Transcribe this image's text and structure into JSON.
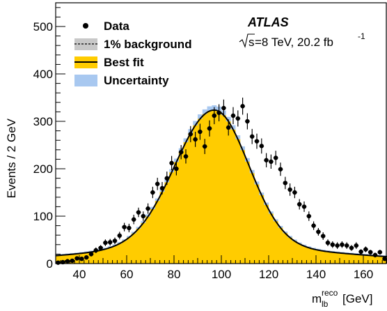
{
  "chart_data": {
    "type": "bar",
    "xlabel": "[GeV]",
    "xlabel_var": "m",
    "xlabel_sub": "lb",
    "xlabel_sup": "reco",
    "ylabel": "Events / 2 GeV",
    "xlim": [
      30,
      170
    ],
    "ylim": [
      0,
      550
    ],
    "bin_width": 2,
    "x_ticks": [
      40,
      60,
      80,
      100,
      120,
      140,
      160
    ],
    "y_ticks": [
      0,
      100,
      200,
      300,
      400,
      500
    ],
    "grid": false,
    "legend_position": "top-left",
    "experiment_label": "ATLAS",
    "energy_label_sqrt": "s",
    "energy_label_rest": "=8 TeV, 20.2 fb",
    "lumi_exponent": "-1",
    "legend": {
      "data": "Data",
      "background": "1% background",
      "best_fit": "Best fit",
      "uncertainty": "Uncertainty"
    },
    "colors": {
      "fit_fill": "#ffcc00",
      "uncertainty": "#a8c8f0",
      "background": "#c8c8c8",
      "line": "#000000"
    },
    "data": {
      "x": [
        31,
        33,
        35,
        37,
        39,
        41,
        43,
        45,
        47,
        49,
        51,
        53,
        55,
        57,
        59,
        61,
        63,
        65,
        67,
        69,
        71,
        73,
        75,
        77,
        79,
        81,
        83,
        85,
        87,
        89,
        91,
        93,
        95,
        97,
        99,
        101,
        103,
        105,
        107,
        109,
        111,
        113,
        115,
        117,
        119,
        121,
        123,
        125,
        127,
        129,
        131,
        133,
        135,
        137,
        139,
        141,
        143,
        145,
        147,
        149,
        151,
        153,
        155,
        157,
        159,
        161,
        163,
        165,
        167,
        169
      ],
      "y": [
        2,
        3,
        5,
        6,
        11,
        10,
        13,
        20,
        28,
        33,
        44,
        45,
        48,
        59,
        77,
        75,
        93,
        108,
        100,
        116,
        150,
        168,
        159,
        180,
        212,
        200,
        235,
        226,
        273,
        262,
        278,
        247,
        285,
        312,
        318,
        328,
        287,
        312,
        306,
        332,
        300,
        268,
        258,
        248,
        218,
        215,
        223,
        199,
        170,
        156,
        150,
        125,
        120,
        100,
        80,
        67,
        58,
        44,
        40,
        38,
        40,
        38,
        33,
        38,
        25,
        30,
        24,
        18,
        24,
        10
      ],
      "err": [
        2,
        2,
        3,
        3,
        4,
        4,
        4,
        5,
        6,
        6,
        7,
        7,
        7,
        8,
        9,
        9,
        10,
        10,
        10,
        11,
        12,
        13,
        13,
        14,
        15,
        14,
        15,
        15,
        17,
        16,
        17,
        16,
        17,
        18,
        18,
        18,
        17,
        18,
        17,
        18,
        17,
        16,
        16,
        16,
        15,
        15,
        15,
        14,
        13,
        13,
        12,
        11,
        11,
        10,
        9,
        8,
        8,
        7,
        7,
        7,
        7,
        7,
        6,
        7,
        5,
        6,
        5,
        5,
        5,
        4
      ]
    },
    "best_fit": {
      "peak_x": 97,
      "peak_y": 322,
      "sigma_left": 16.5,
      "sigma_right": 14.5,
      "tail_amplitude": 35,
      "tail_sigma": 55
    }
  }
}
